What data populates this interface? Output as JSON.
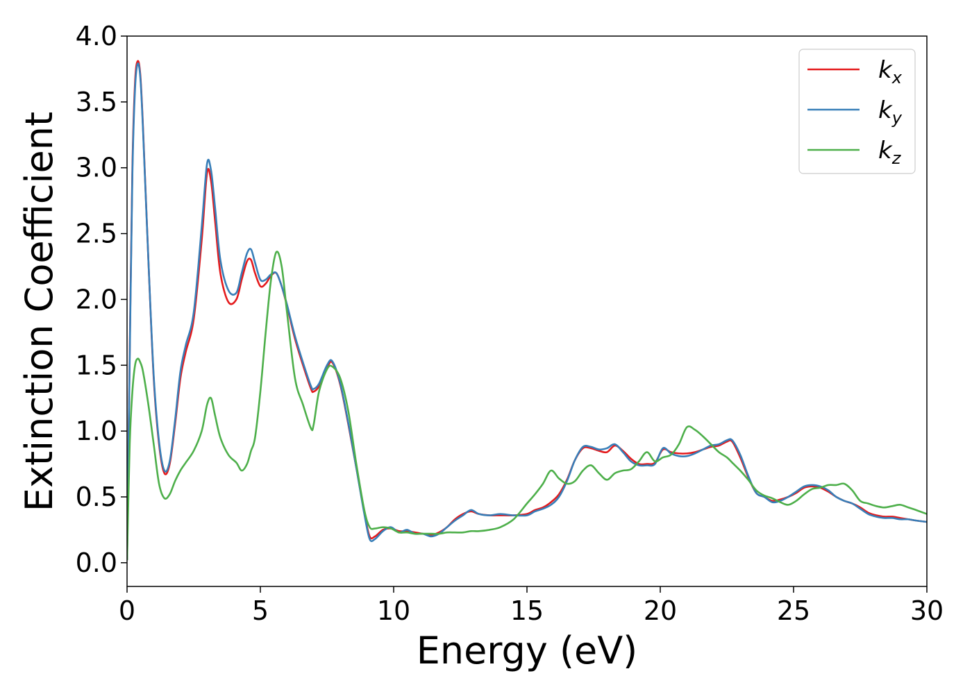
{
  "chart_data": {
    "type": "line",
    "title": "",
    "xlabel": "Energy (eV)",
    "ylabel": "Extinction Coefficient",
    "xlim": [
      0,
      30
    ],
    "ylim": [
      -0.18,
      4.0
    ],
    "xticks": [
      0,
      5,
      10,
      15,
      20,
      25,
      30
    ],
    "xtick_labels": [
      "0",
      "5",
      "10",
      "15",
      "20",
      "25",
      "30"
    ],
    "yticks": [
      0.0,
      0.5,
      1.0,
      1.5,
      2.0,
      2.5,
      3.0,
      3.5,
      4.0
    ],
    "ytick_labels": [
      "0.0",
      "0.5",
      "1.0",
      "1.5",
      "2.0",
      "2.5",
      "3.0",
      "3.5",
      "4.0"
    ],
    "grid": false,
    "legend_position": "top-right",
    "series": [
      {
        "name": "k",
        "subscript": "x",
        "color": "#e41a1c",
        "x": [
          0,
          0.1,
          0.2,
          0.3,
          0.4,
          0.5,
          0.6,
          0.8,
          1.0,
          1.2,
          1.4,
          1.6,
          1.8,
          2.0,
          2.2,
          2.5,
          2.8,
          3.0,
          3.15,
          3.3,
          3.5,
          3.8,
          4.1,
          4.3,
          4.5,
          4.65,
          4.8,
          5.0,
          5.2,
          5.4,
          5.6,
          5.8,
          6.0,
          6.3,
          6.6,
          6.9,
          7.0,
          7.2,
          7.5,
          7.7,
          8.0,
          8.3,
          8.6,
          8.9,
          9.1,
          9.3,
          9.6,
          9.9,
          10.2,
          10.5,
          10.8,
          11.1,
          11.4,
          11.7,
          12.0,
          12.3,
          12.6,
          12.9,
          13.2,
          13.6,
          14.0,
          14.5,
          15.0,
          15.3,
          15.6,
          15.9,
          16.2,
          16.5,
          16.8,
          17.1,
          17.4,
          17.7,
          18.0,
          18.3,
          18.6,
          18.9,
          19.2,
          19.5,
          19.8,
          20.1,
          20.4,
          20.7,
          21.0,
          21.3,
          21.6,
          21.9,
          22.2,
          22.5,
          22.7,
          23.0,
          23.3,
          23.6,
          23.9,
          24.2,
          24.5,
          24.8,
          25.1,
          25.4,
          25.7,
          26.0,
          26.3,
          26.6,
          26.9,
          27.2,
          27.5,
          27.8,
          28.1,
          28.4,
          28.7,
          29.0,
          29.3,
          29.6,
          30.0
        ],
        "y": [
          0.02,
          1.6,
          3.0,
          3.65,
          3.81,
          3.7,
          3.3,
          2.3,
          1.4,
          0.9,
          0.68,
          0.75,
          1.05,
          1.4,
          1.6,
          1.85,
          2.45,
          2.96,
          2.9,
          2.6,
          2.2,
          1.98,
          2.0,
          2.15,
          2.29,
          2.3,
          2.2,
          2.1,
          2.12,
          2.18,
          2.2,
          2.1,
          1.95,
          1.7,
          1.5,
          1.32,
          1.3,
          1.34,
          1.48,
          1.52,
          1.35,
          1.05,
          0.72,
          0.38,
          0.2,
          0.2,
          0.25,
          0.26,
          0.24,
          0.24,
          0.23,
          0.22,
          0.21,
          0.23,
          0.27,
          0.33,
          0.37,
          0.39,
          0.37,
          0.36,
          0.36,
          0.36,
          0.37,
          0.4,
          0.42,
          0.46,
          0.52,
          0.63,
          0.78,
          0.87,
          0.87,
          0.85,
          0.84,
          0.89,
          0.85,
          0.79,
          0.75,
          0.75,
          0.76,
          0.86,
          0.84,
          0.83,
          0.83,
          0.84,
          0.86,
          0.88,
          0.89,
          0.92,
          0.92,
          0.8,
          0.65,
          0.53,
          0.5,
          0.47,
          0.48,
          0.5,
          0.53,
          0.57,
          0.58,
          0.57,
          0.54,
          0.5,
          0.47,
          0.45,
          0.42,
          0.38,
          0.36,
          0.35,
          0.35,
          0.34,
          0.33,
          0.32,
          0.31
        ]
      },
      {
        "name": "k",
        "subscript": "y",
        "color": "#377eb8",
        "x": [
          0,
          0.1,
          0.2,
          0.3,
          0.4,
          0.5,
          0.6,
          0.8,
          1.0,
          1.2,
          1.4,
          1.6,
          1.8,
          2.0,
          2.2,
          2.5,
          2.8,
          3.0,
          3.15,
          3.3,
          3.5,
          3.8,
          4.1,
          4.3,
          4.5,
          4.65,
          4.8,
          5.0,
          5.2,
          5.4,
          5.6,
          5.8,
          6.0,
          6.3,
          6.6,
          6.9,
          7.0,
          7.2,
          7.5,
          7.7,
          8.0,
          8.3,
          8.6,
          8.9,
          9.1,
          9.3,
          9.6,
          9.9,
          10.2,
          10.5,
          10.8,
          11.1,
          11.4,
          11.7,
          12.0,
          12.3,
          12.6,
          12.9,
          13.2,
          13.6,
          14.0,
          14.5,
          15.0,
          15.3,
          15.6,
          15.9,
          16.2,
          16.5,
          16.8,
          17.1,
          17.4,
          17.7,
          18.0,
          18.3,
          18.6,
          18.9,
          19.2,
          19.5,
          19.8,
          20.1,
          20.4,
          20.7,
          21.0,
          21.3,
          21.6,
          21.9,
          22.2,
          22.5,
          22.7,
          23.0,
          23.3,
          23.6,
          23.9,
          24.2,
          24.5,
          24.8,
          25.1,
          25.4,
          25.7,
          26.0,
          26.3,
          26.6,
          26.9,
          27.2,
          27.5,
          27.8,
          28.1,
          28.4,
          28.7,
          29.0,
          29.3,
          29.6,
          30.0
        ],
        "y": [
          0.02,
          1.55,
          2.95,
          3.6,
          3.79,
          3.68,
          3.28,
          2.3,
          1.42,
          0.92,
          0.7,
          0.77,
          1.08,
          1.45,
          1.65,
          1.9,
          2.55,
          3.03,
          2.98,
          2.7,
          2.3,
          2.07,
          2.05,
          2.2,
          2.35,
          2.38,
          2.28,
          2.15,
          2.15,
          2.19,
          2.2,
          2.1,
          1.96,
          1.72,
          1.52,
          1.34,
          1.32,
          1.36,
          1.5,
          1.53,
          1.36,
          1.06,
          0.72,
          0.37,
          0.18,
          0.18,
          0.24,
          0.27,
          0.23,
          0.25,
          0.22,
          0.22,
          0.2,
          0.22,
          0.27,
          0.32,
          0.36,
          0.4,
          0.37,
          0.36,
          0.37,
          0.36,
          0.36,
          0.39,
          0.41,
          0.44,
          0.5,
          0.62,
          0.78,
          0.88,
          0.88,
          0.86,
          0.87,
          0.9,
          0.84,
          0.77,
          0.74,
          0.74,
          0.75,
          0.87,
          0.83,
          0.81,
          0.81,
          0.83,
          0.86,
          0.89,
          0.9,
          0.93,
          0.93,
          0.82,
          0.66,
          0.53,
          0.5,
          0.46,
          0.47,
          0.5,
          0.54,
          0.58,
          0.59,
          0.58,
          0.55,
          0.5,
          0.47,
          0.45,
          0.41,
          0.37,
          0.35,
          0.34,
          0.34,
          0.33,
          0.33,
          0.32,
          0.31
        ]
      },
      {
        "name": "k",
        "subscript": "z",
        "color": "#4daf4a",
        "x": [
          0,
          0.1,
          0.2,
          0.3,
          0.4,
          0.5,
          0.6,
          0.8,
          1.0,
          1.2,
          1.4,
          1.6,
          1.8,
          2.0,
          2.2,
          2.5,
          2.8,
          3.0,
          3.15,
          3.3,
          3.5,
          3.8,
          4.1,
          4.3,
          4.5,
          4.65,
          4.8,
          5.0,
          5.2,
          5.4,
          5.6,
          5.8,
          6.0,
          6.3,
          6.6,
          6.9,
          7.0,
          7.2,
          7.5,
          7.7,
          8.0,
          8.3,
          8.6,
          8.9,
          9.1,
          9.3,
          9.6,
          9.9,
          10.2,
          10.5,
          10.8,
          11.1,
          11.4,
          11.7,
          12.0,
          12.3,
          12.6,
          12.9,
          13.2,
          13.6,
          14.0,
          14.5,
          15.0,
          15.3,
          15.6,
          15.9,
          16.2,
          16.5,
          16.8,
          17.1,
          17.4,
          17.7,
          18.0,
          18.3,
          18.6,
          18.9,
          19.2,
          19.5,
          19.8,
          20.1,
          20.4,
          20.7,
          21.0,
          21.3,
          21.6,
          21.9,
          22.2,
          22.5,
          22.7,
          23.0,
          23.3,
          23.6,
          23.9,
          24.2,
          24.5,
          24.8,
          25.1,
          25.4,
          25.7,
          26.0,
          26.3,
          26.6,
          26.9,
          27.2,
          27.5,
          27.8,
          28.1,
          28.4,
          28.7,
          29.0,
          29.3,
          29.6,
          30.0
        ],
        "y": [
          0.02,
          0.9,
          1.3,
          1.5,
          1.55,
          1.52,
          1.45,
          1.2,
          0.9,
          0.6,
          0.49,
          0.52,
          0.62,
          0.7,
          0.76,
          0.85,
          1.0,
          1.2,
          1.25,
          1.12,
          0.95,
          0.82,
          0.76,
          0.7,
          0.75,
          0.85,
          0.95,
          1.3,
          1.75,
          2.15,
          2.36,
          2.25,
          1.9,
          1.4,
          1.2,
          1.02,
          1.05,
          1.3,
          1.47,
          1.49,
          1.4,
          1.15,
          0.75,
          0.4,
          0.27,
          0.26,
          0.27,
          0.26,
          0.23,
          0.23,
          0.22,
          0.22,
          0.22,
          0.22,
          0.23,
          0.23,
          0.23,
          0.24,
          0.24,
          0.25,
          0.27,
          0.33,
          0.45,
          0.52,
          0.6,
          0.7,
          0.64,
          0.6,
          0.62,
          0.7,
          0.74,
          0.68,
          0.63,
          0.68,
          0.7,
          0.71,
          0.77,
          0.84,
          0.77,
          0.8,
          0.82,
          0.9,
          1.03,
          1.01,
          0.96,
          0.9,
          0.84,
          0.8,
          0.76,
          0.7,
          0.63,
          0.55,
          0.51,
          0.49,
          0.46,
          0.44,
          0.47,
          0.52,
          0.56,
          0.57,
          0.59,
          0.59,
          0.6,
          0.55,
          0.47,
          0.45,
          0.43,
          0.42,
          0.43,
          0.44,
          0.42,
          0.4,
          0.37
        ]
      }
    ]
  }
}
